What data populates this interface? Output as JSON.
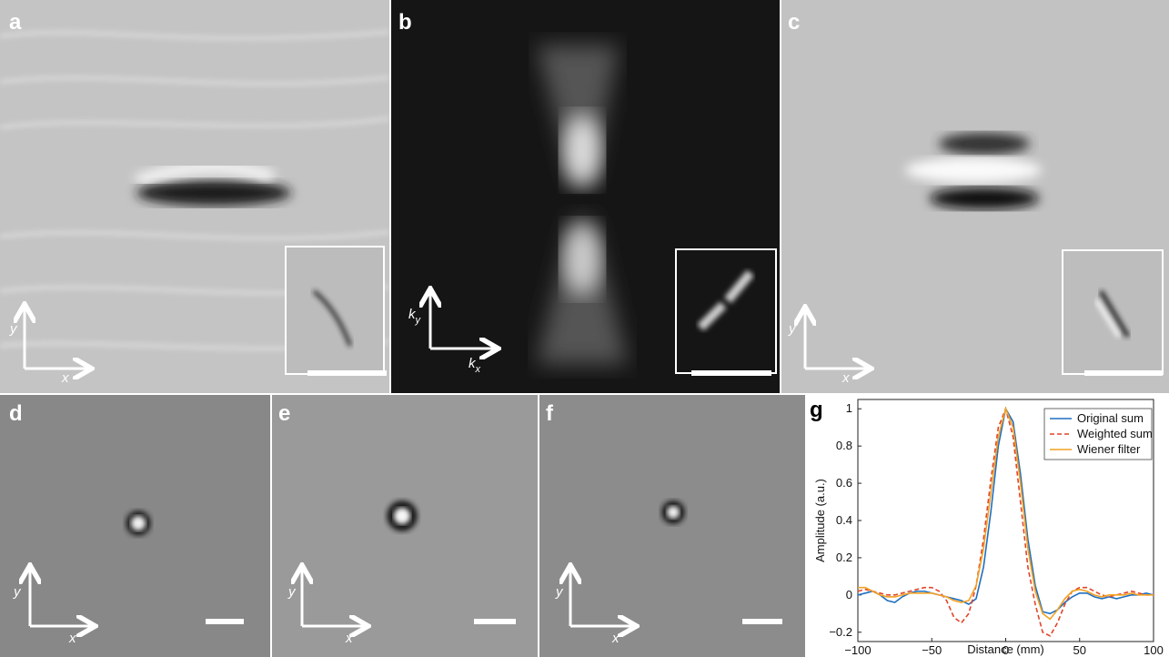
{
  "panels": [
    {
      "label": "a",
      "x_axis": "x",
      "y_axis": "y"
    },
    {
      "label": "b",
      "x_axis": {
        "main": "k",
        "sub": "x"
      },
      "y_axis": {
        "main": "k",
        "sub": "y"
      }
    },
    {
      "label": "c",
      "x_axis": "x",
      "y_axis": "y"
    },
    {
      "label": "d",
      "x_axis": "x",
      "y_axis": "y"
    },
    {
      "label": "e",
      "x_axis": "x",
      "y_axis": "y"
    },
    {
      "label": "f",
      "x_axis": "x",
      "y_axis": "y"
    }
  ],
  "chart_data": {
    "type": "line",
    "panel_label": "g",
    "x_label": "Distance (mm)",
    "y_label": "Amplitude (a.u.)",
    "xlim": [
      -100,
      100
    ],
    "ylim": [
      -0.25,
      1.05
    ],
    "xticks": [
      {
        "value": -100,
        "label": "−100"
      },
      {
        "value": -50,
        "label": "−50"
      },
      0,
      50,
      100
    ],
    "yticks": [
      {
        "value": -0.2,
        "label": "−0.2"
      },
      0,
      0.2,
      0.4,
      0.6,
      0.8,
      1
    ],
    "x": [
      -100,
      -95,
      -90,
      -85,
      -80,
      -75,
      -70,
      -65,
      -60,
      -55,
      -50,
      -45,
      -40,
      -35,
      -30,
      -25,
      -20,
      -15,
      -10,
      -5,
      0,
      5,
      10,
      15,
      20,
      25,
      30,
      35,
      40,
      45,
      50,
      55,
      60,
      65,
      70,
      75,
      80,
      85,
      90,
      95,
      100
    ],
    "series": [
      {
        "name": "Original sum",
        "color": "#1f6fc0",
        "dash": false,
        "values": [
          0,
          0.01,
          0.02,
          0,
          -0.03,
          -0.04,
          -0.01,
          0.01,
          0.02,
          0.02,
          0.01,
          0,
          -0.01,
          -0.02,
          -0.03,
          -0.05,
          -0.02,
          0.15,
          0.45,
          0.8,
          1,
          0.93,
          0.65,
          0.3,
          0.05,
          -0.09,
          -0.1,
          -0.08,
          -0.04,
          -0.01,
          0.01,
          0.01,
          -0.01,
          -0.02,
          -0.01,
          -0.02,
          -0.01,
          0,
          0,
          0.01,
          0
        ]
      },
      {
        "name": "Weighted sum",
        "color": "#e0452a",
        "dash": true,
        "values": [
          0.02,
          0.03,
          0.02,
          0.01,
          0,
          0,
          0.01,
          0.02,
          0.03,
          0.04,
          0.04,
          0.02,
          -0.03,
          -0.12,
          -0.15,
          -0.1,
          0.05,
          0.3,
          0.62,
          0.9,
          1,
          0.85,
          0.5,
          0.15,
          -0.05,
          -0.2,
          -0.22,
          -0.15,
          -0.05,
          0.02,
          0.04,
          0.04,
          0.02,
          0,
          -0.01,
          0,
          0.01,
          0.02,
          0.01,
          0,
          0
        ]
      },
      {
        "name": "Wiener filter",
        "color": "#f2a122",
        "dash": false,
        "values": [
          0.04,
          0.04,
          0.02,
          0,
          -0.01,
          -0.01,
          0,
          0.01,
          0.01,
          0.01,
          0.01,
          0,
          -0.01,
          -0.03,
          -0.04,
          -0.03,
          0.05,
          0.25,
          0.55,
          0.85,
          1,
          0.9,
          0.6,
          0.25,
          0.02,
          -0.1,
          -0.13,
          -0.08,
          -0.02,
          0.02,
          0.03,
          0.02,
          0,
          -0.01,
          0,
          0,
          0,
          0.01,
          0,
          0,
          0
        ]
      }
    ],
    "legend": "upper right",
    "grid": false
  }
}
